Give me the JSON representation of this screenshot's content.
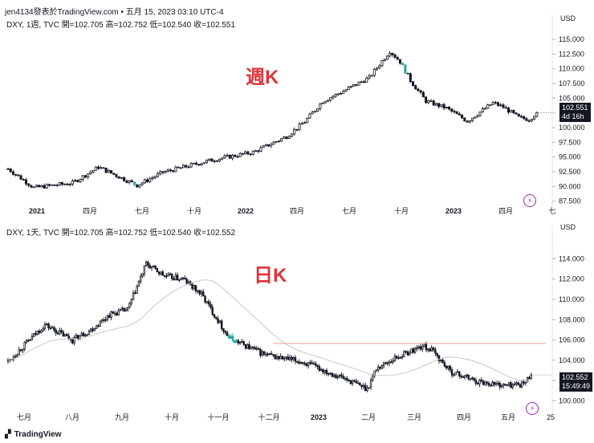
{
  "header": {
    "text": "jen4134發表於TradingView.com • 五月 15, 2023 03:10 UTC-4"
  },
  "footer": {
    "brand": "TradingView",
    "logo": "tv-logo-icon"
  },
  "chart_data": [
    {
      "type": "candlestick",
      "title": "週K",
      "legend": "DXY, 1週, TVC  開=102.705  高=102.752  低=102.540  收=102.551",
      "currency": "USD",
      "y_ticks": [
        "115.000",
        "112.500",
        "110.000",
        "107.500",
        "105.000",
        "102.500",
        "100.000",
        "97.500",
        "95.000",
        "92.500",
        "90.000",
        "87.500"
      ],
      "ylim": [
        86.5,
        116.5
      ],
      "x_labels": [
        "2021",
        "四月",
        "七月",
        "十月",
        "2022",
        "四月",
        "七月",
        "十月",
        "2023",
        "四月",
        "七"
      ],
      "x_labels_bold": [
        0,
        4,
        8
      ],
      "last_price": "102.551",
      "countdown": "4d 16h",
      "anchors": [
        [
          0,
          93.0
        ],
        [
          10,
          89.8
        ],
        [
          25,
          90.6
        ],
        [
          35,
          93.3
        ],
        [
          50,
          90.2
        ],
        [
          60,
          92.4
        ],
        [
          80,
          94.6
        ],
        [
          95,
          95.8
        ],
        [
          108,
          98.5
        ],
        [
          115,
          101.0
        ],
        [
          122,
          104.5
        ],
        [
          130,
          106.2
        ],
        [
          140,
          108.5
        ],
        [
          148,
          113.0
        ],
        [
          152,
          111.2
        ],
        [
          156,
          108.0
        ],
        [
          162,
          104.5
        ],
        [
          170,
          103.3
        ],
        [
          178,
          101.1
        ],
        [
          188,
          104.2
        ],
        [
          192,
          103.5
        ],
        [
          198,
          101.7
        ],
        [
          202,
          101.4
        ],
        [
          205,
          102.55
        ]
      ]
    },
    {
      "type": "candlestick",
      "title": "日K",
      "legend": "DXY, 1天, TVC  開=102.705  高=102.752  低=102.540  收=102.552",
      "currency": "USD",
      "y_ticks": [
        "114.000",
        "112.000",
        "110.000",
        "108.000",
        "106.000",
        "104.000",
        "102.000",
        "100.000"
      ],
      "ylim": [
        99.0,
        115.7
      ],
      "x_labels": [
        "七月",
        "八月",
        "九月",
        "十月",
        "十一月",
        "十二月",
        "2023",
        "二月",
        "三月",
        "四月",
        "五月",
        "25"
      ],
      "x_labels_bold": [
        6
      ],
      "last_price": "102.552",
      "countdown": "15:49:49",
      "resistance": 105.65,
      "anchors": [
        [
          0,
          103.9
        ],
        [
          20,
          107.5
        ],
        [
          35,
          106.0
        ],
        [
          45,
          107.0
        ],
        [
          55,
          108.5
        ],
        [
          65,
          109.0
        ],
        [
          75,
          113.5
        ],
        [
          85,
          112.3
        ],
        [
          95,
          112.0
        ],
        [
          105,
          110.5
        ],
        [
          120,
          106.2
        ],
        [
          140,
          104.5
        ],
        [
          160,
          103.8
        ],
        [
          180,
          102.4
        ],
        [
          195,
          101.2
        ],
        [
          200,
          103.2
        ],
        [
          210,
          104.2
        ],
        [
          225,
          105.4
        ],
        [
          230,
          105.0
        ],
        [
          240,
          102.9
        ],
        [
          255,
          101.9
        ],
        [
          270,
          101.5
        ],
        [
          280,
          101.7
        ],
        [
          284,
          102.55
        ]
      ]
    }
  ],
  "colors": {
    "up": "#ffffff",
    "down": "#131722",
    "highlight": "#26a69a",
    "ma": "#c8c8c8",
    "resistance": "#ef9a9a",
    "label": "#e0333a"
  },
  "icons": [
    "bolt-icon",
    "tv-logo-icon"
  ]
}
